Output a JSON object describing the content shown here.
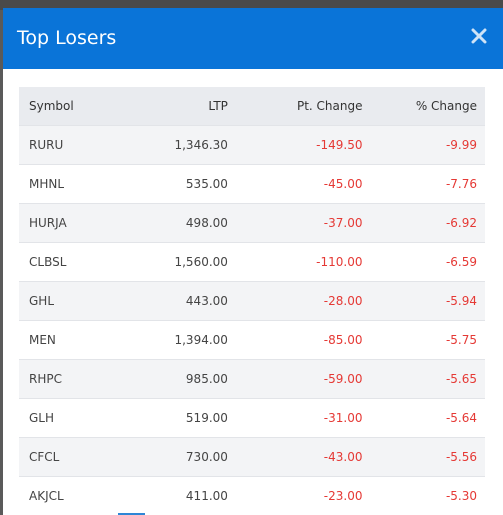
{
  "modal": {
    "title": "Top Losers",
    "close_icon": "close-icon"
  },
  "table": {
    "headers": [
      "Symbol",
      "LTP",
      "Pt. Change",
      "% Change"
    ],
    "rows": [
      {
        "symbol": "RURU",
        "ltp": "1,346.30",
        "pt_change": "-149.50",
        "pct_change": "-9.99"
      },
      {
        "symbol": "MHNL",
        "ltp": "535.00",
        "pt_change": "-45.00",
        "pct_change": "-7.76"
      },
      {
        "symbol": "HURJA",
        "ltp": "498.00",
        "pt_change": "-37.00",
        "pct_change": "-6.92"
      },
      {
        "symbol": "CLBSL",
        "ltp": "1,560.00",
        "pt_change": "-110.00",
        "pct_change": "-6.59"
      },
      {
        "symbol": "GHL",
        "ltp": "443.00",
        "pt_change": "-28.00",
        "pct_change": "-5.94"
      },
      {
        "symbol": "MEN",
        "ltp": "1,394.00",
        "pt_change": "-85.00",
        "pct_change": "-5.75"
      },
      {
        "symbol": "RHPC",
        "ltp": "985.00",
        "pt_change": "-59.00",
        "pct_change": "-5.65"
      },
      {
        "symbol": "GLH",
        "ltp": "519.00",
        "pt_change": "-31.00",
        "pct_change": "-5.64"
      },
      {
        "symbol": "CFCL",
        "ltp": "730.00",
        "pt_change": "-43.00",
        "pct_change": "-5.56"
      },
      {
        "symbol": "AKJCL",
        "ltp": "411.00",
        "pt_change": "-23.00",
        "pct_change": "-5.30"
      }
    ]
  },
  "colors": {
    "header_blue": "#0a74d8",
    "negative_red": "#e53935"
  }
}
